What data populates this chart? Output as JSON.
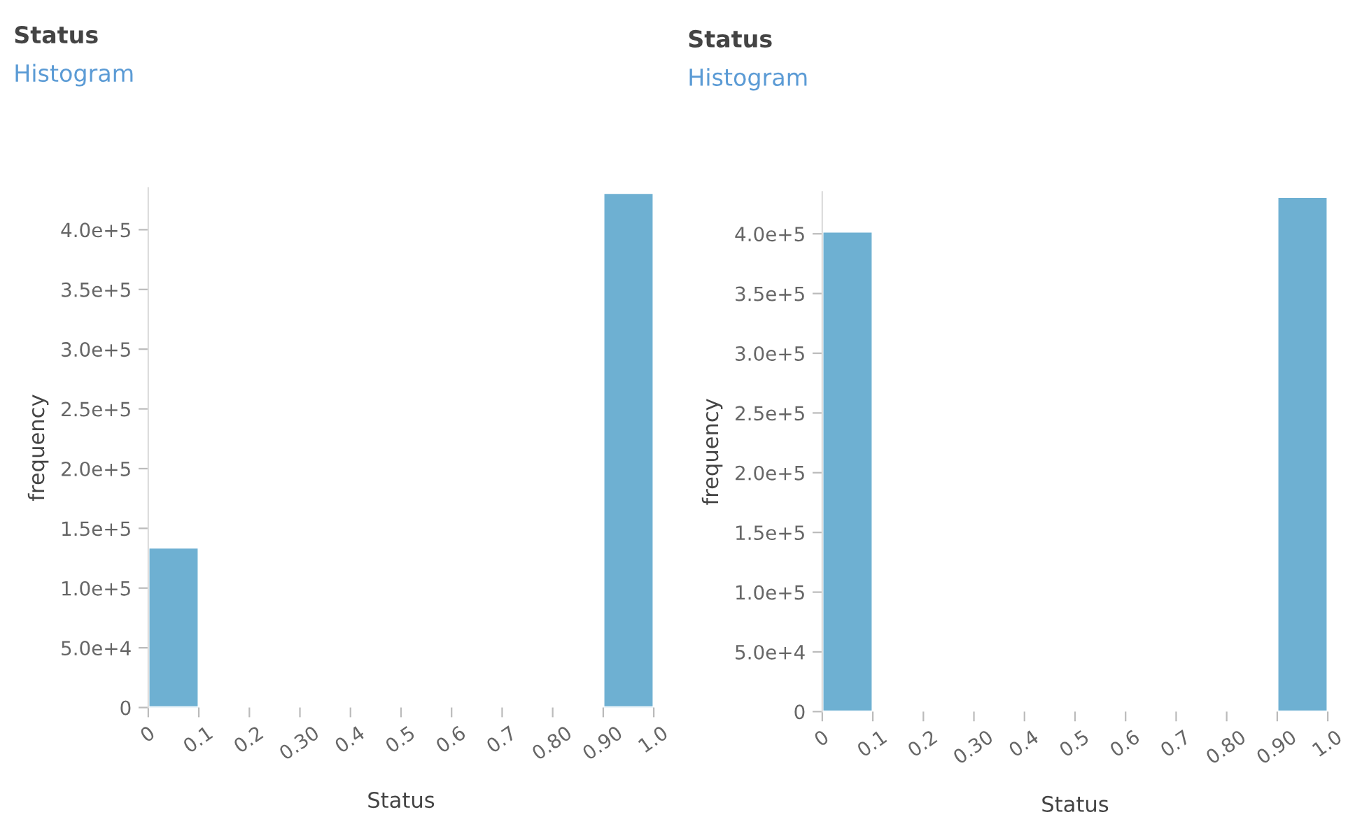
{
  "chart_data": [
    {
      "type": "histogram",
      "title": "Status",
      "subtitle": "Histogram",
      "xlabel": "Status",
      "ylabel": "frequency",
      "color": "#6eb0d2",
      "bins": [
        0,
        0.1,
        0.2,
        0.3,
        0.4,
        0.5,
        0.6,
        0.7,
        0.8,
        0.9,
        1.0
      ],
      "values": [
        134000,
        0,
        0,
        0,
        0,
        0,
        0,
        0,
        0,
        431000
      ],
      "xlim": [
        0,
        1
      ],
      "xticks": [
        0,
        0.1,
        0.2,
        {
          "value": 0.3,
          "label": "0.30"
        },
        0.4,
        0.5,
        0.6,
        0.7,
        {
          "value": 0.8,
          "label": "0.80"
        },
        {
          "value": 0.9,
          "label": "0.90"
        },
        {
          "value": 1.0,
          "label": "1.0"
        }
      ],
      "ylim": [
        0,
        435000
      ],
      "yticks": [
        0,
        {
          "value": 50000,
          "label": "5.0e+4"
        },
        {
          "value": 100000,
          "label": "1.0e+5"
        },
        {
          "value": 150000,
          "label": "1.5e+5"
        },
        {
          "value": 200000,
          "label": "2.0e+5"
        },
        {
          "value": 250000,
          "label": "2.5e+5"
        },
        {
          "value": 300000,
          "label": "3.0e+5"
        },
        {
          "value": 350000,
          "label": "3.5e+5"
        },
        {
          "value": 400000,
          "label": "4.0e+5"
        }
      ],
      "grid": false,
      "legend": false
    },
    {
      "type": "histogram",
      "title": "Status",
      "subtitle": "Histogram",
      "xlabel": "Status",
      "ylabel": "frequency",
      "color": "#6eb0d2",
      "bins": [
        0,
        0.1,
        0.2,
        0.3,
        0.4,
        0.5,
        0.6,
        0.7,
        0.8,
        0.9,
        1.0
      ],
      "values": [
        402000,
        0,
        0,
        0,
        0,
        0,
        0,
        0,
        0,
        431000
      ],
      "xlim": [
        0,
        1
      ],
      "xticks": [
        0,
        0.1,
        0.2,
        {
          "value": 0.3,
          "label": "0.30"
        },
        0.4,
        0.5,
        0.6,
        0.7,
        {
          "value": 0.8,
          "label": "0.80"
        },
        {
          "value": 0.9,
          "label": "0.90"
        },
        {
          "value": 1.0,
          "label": "1.0"
        }
      ],
      "ylim": [
        0,
        435000
      ],
      "yticks": [
        0,
        {
          "value": 50000,
          "label": "5.0e+4"
        },
        {
          "value": 100000,
          "label": "1.0e+5"
        },
        {
          "value": 150000,
          "label": "1.5e+5"
        },
        {
          "value": 200000,
          "label": "2.0e+5"
        },
        {
          "value": 250000,
          "label": "2.5e+5"
        },
        {
          "value": 300000,
          "label": "3.0e+5"
        },
        {
          "value": 350000,
          "label": "3.5e+5"
        },
        {
          "value": 400000,
          "label": "4.0e+5"
        }
      ],
      "grid": false,
      "legend": false
    }
  ]
}
